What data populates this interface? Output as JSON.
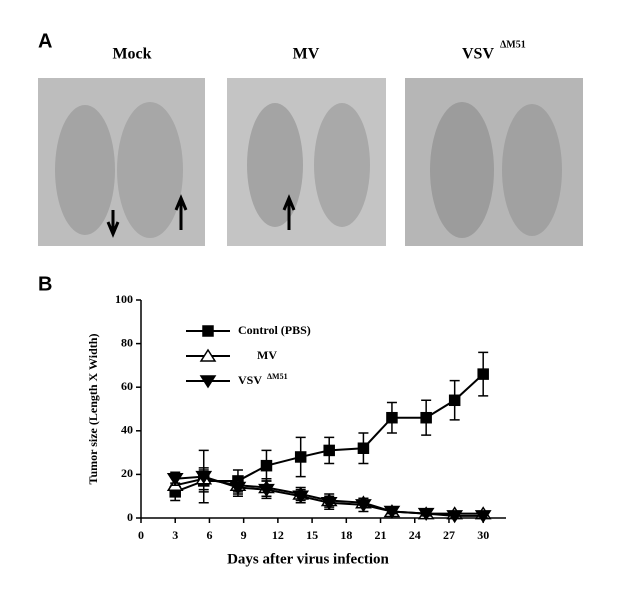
{
  "panels": {
    "a": {
      "label": "A",
      "photos": [
        {
          "label": "Mock"
        },
        {
          "label": "MV"
        },
        {
          "label": "VSV",
          "superscript": "ΔM51"
        }
      ]
    },
    "b": {
      "label": "B"
    }
  },
  "chart_data": {
    "type": "line",
    "xlabel": "Days after virus infection",
    "ylabel": "Tumor size (Length X Width)",
    "x": [
      3,
      5.5,
      8.5,
      11,
      14,
      16.5,
      19.5,
      22,
      25,
      27.5,
      30
    ],
    "series": [
      {
        "name": "Control (PBS)",
        "color": "#000000",
        "marker": "square",
        "values": [
          12,
          17,
          17,
          24,
          28,
          31,
          32,
          46,
          46,
          54,
          66
        ],
        "errors": [
          4,
          5,
          5,
          7,
          9,
          6,
          7,
          7,
          8,
          9,
          10
        ]
      },
      {
        "name": "MV",
        "color": "#000000",
        "marker": "triangle-open",
        "values": [
          15,
          18,
          15,
          14,
          11,
          8,
          7,
          3,
          2,
          2,
          2
        ],
        "errors": [
          4,
          5,
          4,
          4,
          3,
          3,
          2,
          1,
          1,
          1,
          1
        ]
      },
      {
        "name": "VSV",
        "name_superscript": "ΔM51",
        "color": "#000000",
        "marker": "triangle-down",
        "values": [
          18,
          19,
          14,
          13,
          10,
          7,
          6,
          3,
          2,
          1,
          1
        ],
        "errors": [
          3,
          12,
          4,
          4,
          3,
          3,
          3,
          1,
          1,
          1,
          1
        ]
      }
    ],
    "xlim": [
      0,
      32
    ],
    "xticks": [
      0,
      3,
      6,
      9,
      12,
      15,
      18,
      21,
      24,
      27,
      30
    ],
    "ylim": [
      0,
      100
    ],
    "yticks": [
      0,
      20,
      40,
      60,
      80,
      100
    ],
    "grid": false
  }
}
